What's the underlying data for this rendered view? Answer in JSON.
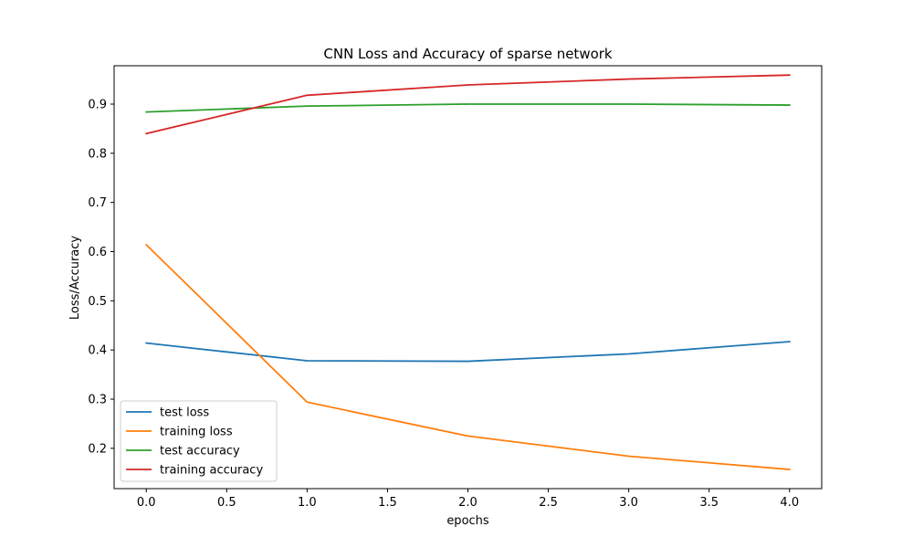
{
  "chart_data": {
    "type": "line",
    "title": "CNN Loss and Accuracy of sparse network",
    "xlabel": "epochs",
    "ylabel": "Loss/Accuracy",
    "xlim": [
      -0.2,
      4.2
    ],
    "ylim": [
      0.118,
      0.978
    ],
    "x_ticks": [
      "0.0",
      "0.5",
      "1.0",
      "1.5",
      "2.0",
      "2.5",
      "3.0",
      "3.5",
      "4.0"
    ],
    "y_ticks": [
      "0.2",
      "0.3",
      "0.4",
      "0.5",
      "0.6",
      "0.7",
      "0.8",
      "0.9"
    ],
    "x": [
      0,
      1,
      2,
      3,
      4
    ],
    "series": [
      {
        "name": "test loss",
        "color": "#1f77b4",
        "values": [
          0.414,
          0.378,
          0.377,
          0.392,
          0.417
        ]
      },
      {
        "name": "training loss",
        "color": "#ff7f0e",
        "values": [
          0.614,
          0.294,
          0.225,
          0.184,
          0.157
        ]
      },
      {
        "name": "test accuracy",
        "color": "#2ca02c",
        "values": [
          0.884,
          0.896,
          0.9,
          0.9,
          0.898
        ]
      },
      {
        "name": "training accuracy",
        "color": "#d62728",
        "values": [
          0.84,
          0.918,
          0.939,
          0.951,
          0.959
        ]
      }
    ],
    "grid": false,
    "legend": {
      "position": "lower-left"
    }
  }
}
